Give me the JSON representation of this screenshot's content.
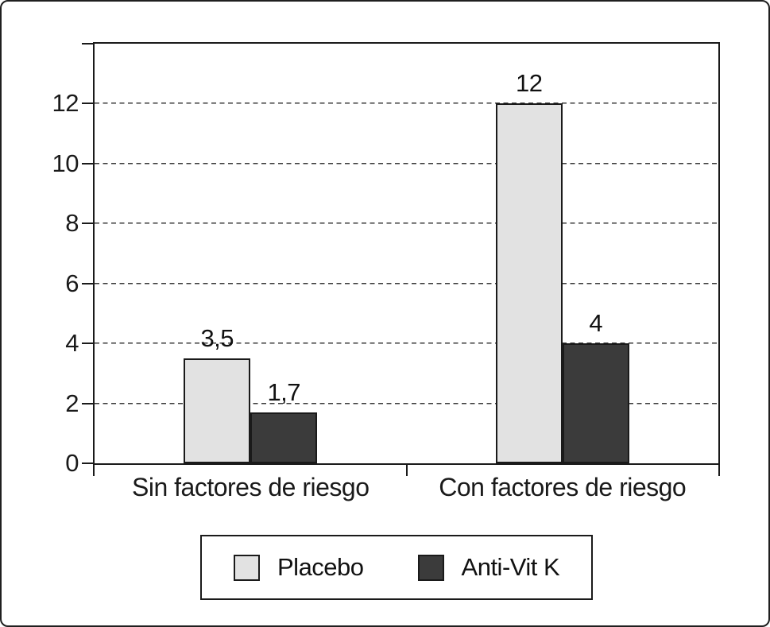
{
  "figure": {
    "background_color": "#ffffff",
    "frame_color": "#1a1a1a"
  },
  "chart_data": {
    "type": "bar",
    "title": "",
    "xlabel": "",
    "ylabel": "",
    "categories": [
      "Sin factores de riesgo",
      "Con factores de riesgo"
    ],
    "series": [
      {
        "name": "Placebo",
        "color": "#e2e2e2",
        "values": [
          3.5,
          12
        ],
        "value_labels": [
          "3,5",
          "12"
        ]
      },
      {
        "name": "Anti-Vit K",
        "color": "#3b3b3b",
        "values": [
          1.7,
          4
        ],
        "value_labels": [
          "1,7",
          "4"
        ]
      }
    ],
    "ylim": [
      0,
      14
    ],
    "yticks": [
      0,
      2,
      4,
      6,
      8,
      10,
      12
    ],
    "ytick_labels": [
      "0",
      "2",
      "4",
      "6",
      "8",
      "10",
      "12"
    ],
    "grid": "horizontal-dashed",
    "legend_position": "bottom"
  }
}
